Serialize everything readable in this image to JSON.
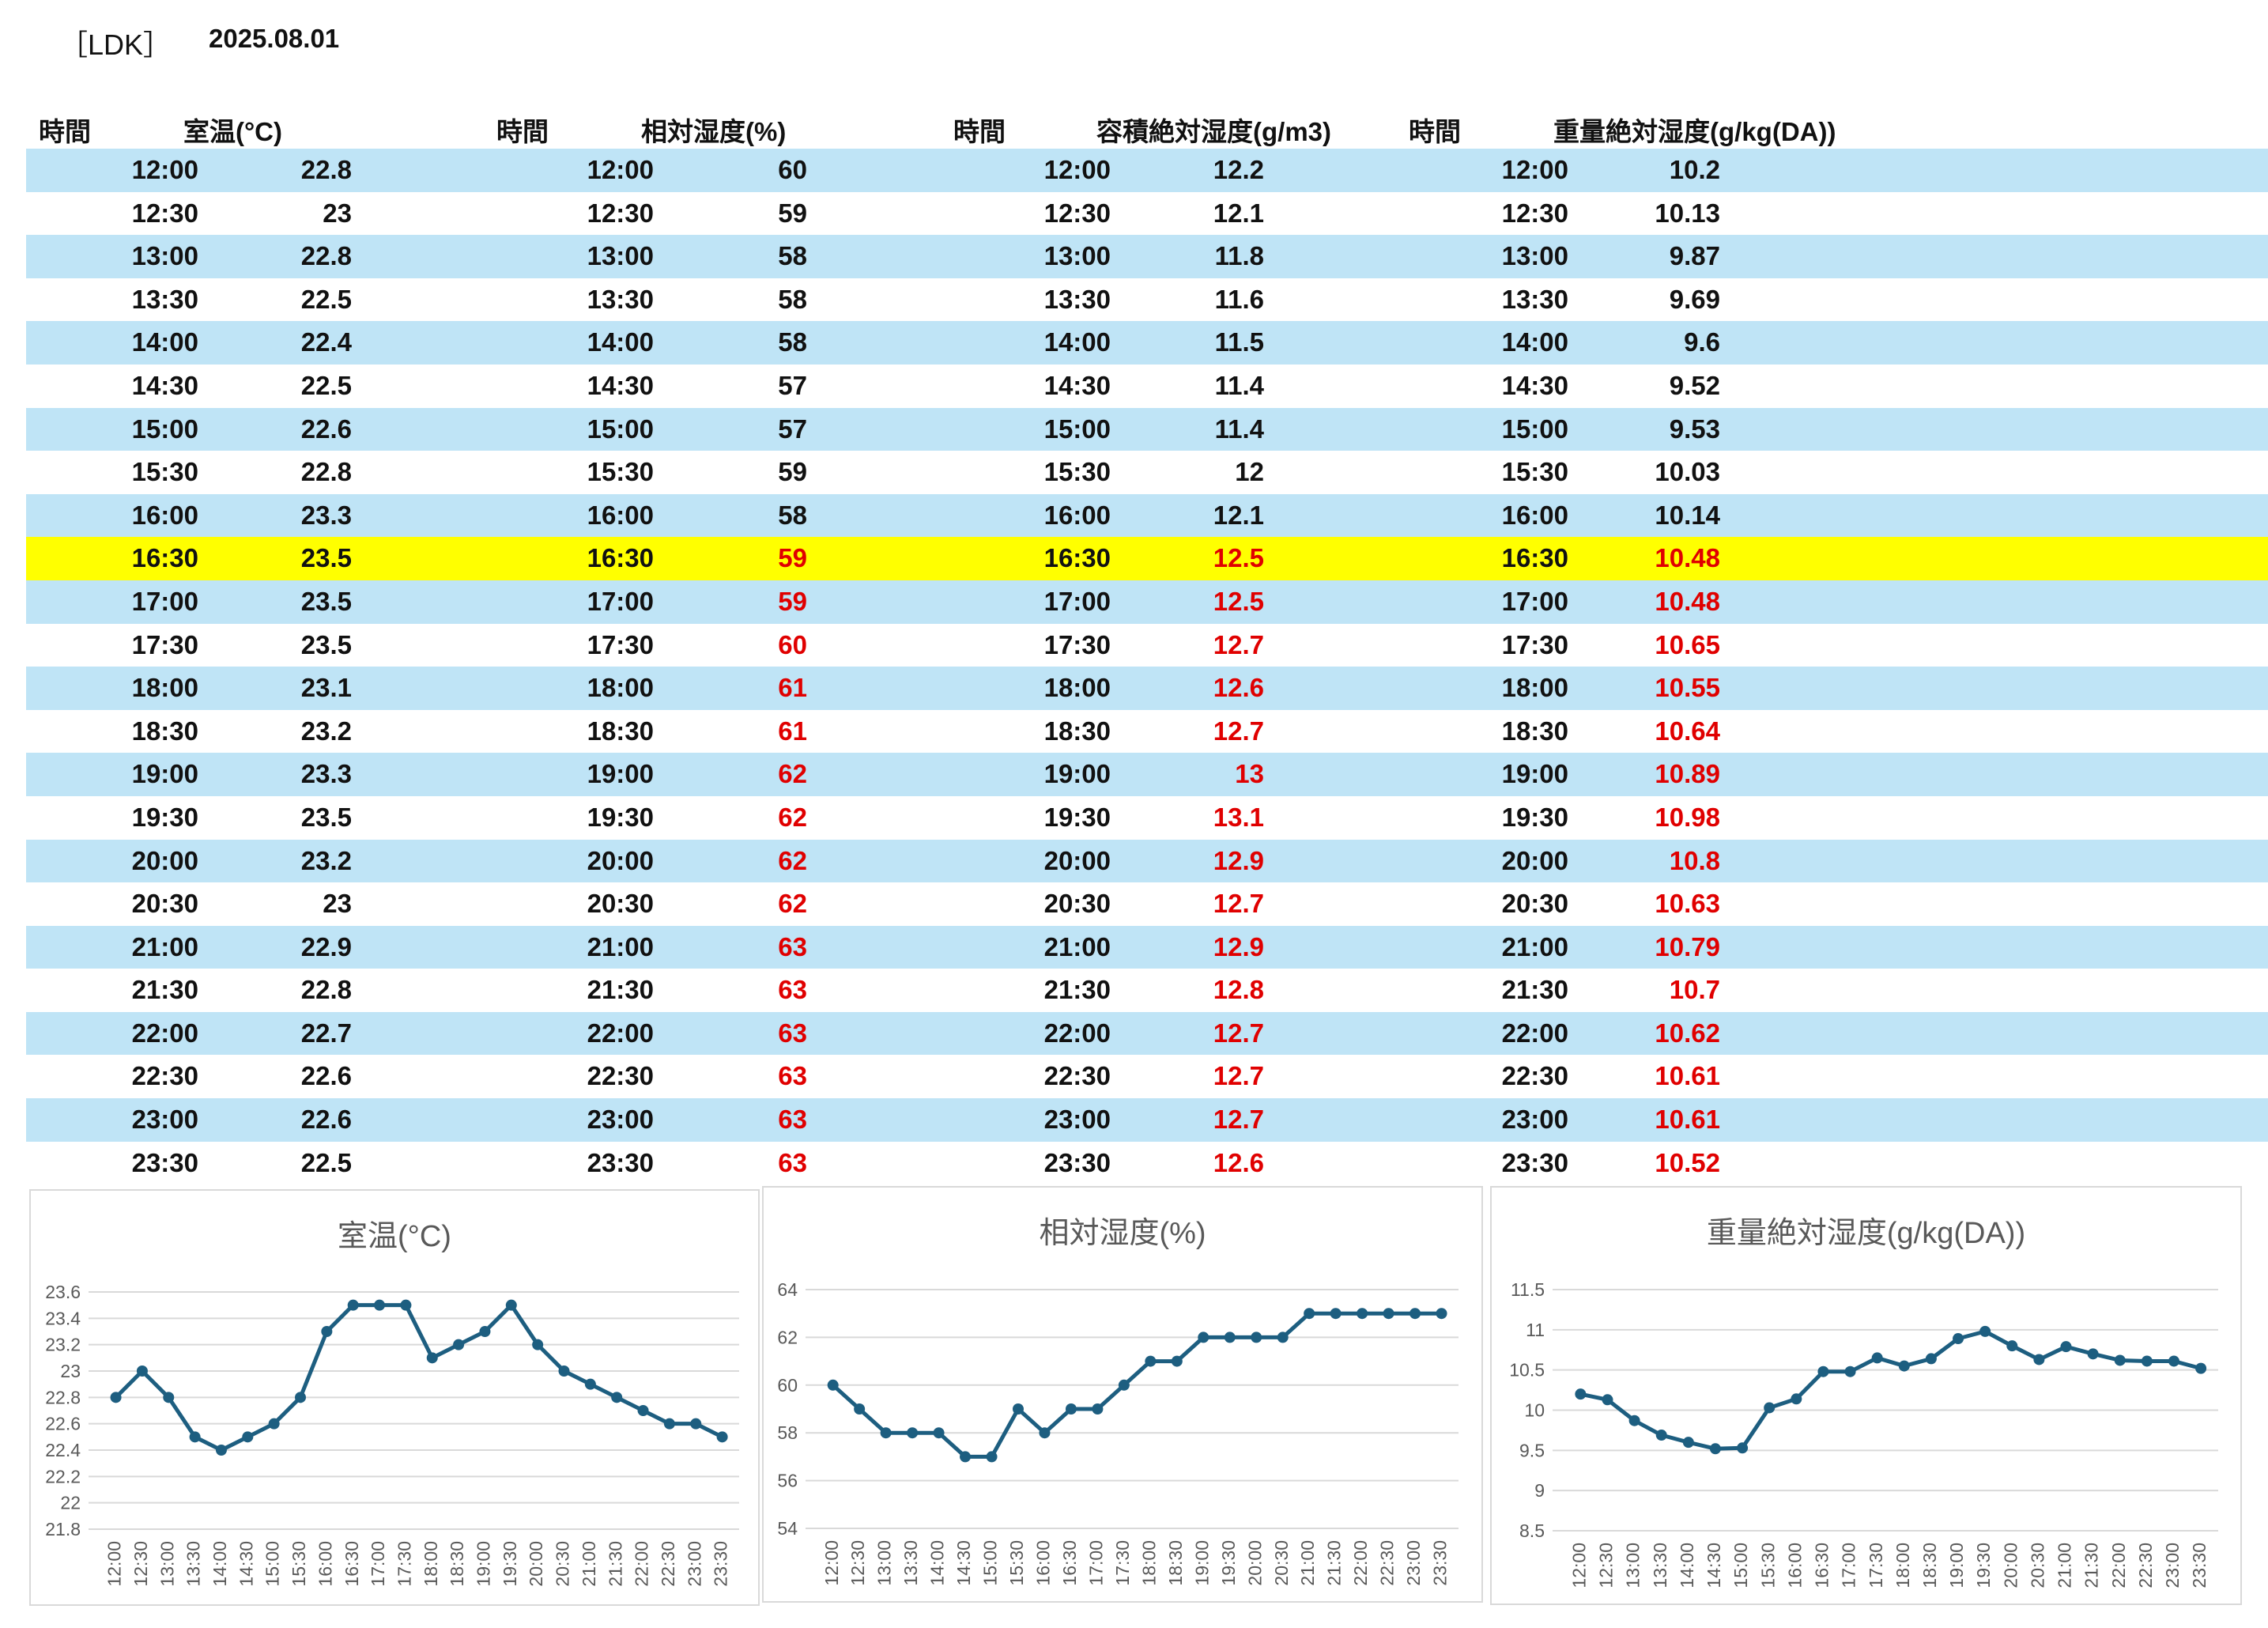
{
  "header": {
    "title": "［LDK］",
    "date": "2025.08.01"
  },
  "columns": {
    "time": "時間",
    "temp": "室温(°C)",
    "rh": "相対湿度(%)",
    "vah": "容積絶対湿度(g/m3)",
    "mah": "重量絶対湿度(g/kg(DA))"
  },
  "colors": {
    "row_alt": "#bfe4f6",
    "highlight": "#ffff00",
    "red_text": "#e00000",
    "line": "#1d5e80"
  },
  "highlight_row": "16:30",
  "red_from_row": "16:30",
  "times": [
    "12:00",
    "12:30",
    "13:00",
    "13:30",
    "14:00",
    "14:30",
    "15:00",
    "15:30",
    "16:00",
    "16:30",
    "17:00",
    "17:30",
    "18:00",
    "18:30",
    "19:00",
    "19:30",
    "20:00",
    "20:30",
    "21:00",
    "21:30",
    "22:00",
    "22:30",
    "23:00",
    "23:30"
  ],
  "temp": [
    "22.8",
    "23",
    "22.8",
    "22.5",
    "22.4",
    "22.5",
    "22.6",
    "22.8",
    "23.3",
    "23.5",
    "23.5",
    "23.5",
    "23.1",
    "23.2",
    "23.3",
    "23.5",
    "23.2",
    "23",
    "22.9",
    "22.8",
    "22.7",
    "22.6",
    "22.6",
    "22.5"
  ],
  "rh": [
    "60",
    "59",
    "58",
    "58",
    "58",
    "57",
    "57",
    "59",
    "58",
    "59",
    "59",
    "60",
    "61",
    "61",
    "62",
    "62",
    "62",
    "62",
    "63",
    "63",
    "63",
    "63",
    "63",
    "63"
  ],
  "vah": [
    "12.2",
    "12.1",
    "11.8",
    "11.6",
    "11.5",
    "11.4",
    "11.4",
    "12",
    "12.1",
    "12.5",
    "12.5",
    "12.7",
    "12.6",
    "12.7",
    "13",
    "13.1",
    "12.9",
    "12.7",
    "12.9",
    "12.8",
    "12.7",
    "12.7",
    "12.7",
    "12.6"
  ],
  "mah": [
    "10.2",
    "10.13",
    "9.87",
    "9.69",
    "9.6",
    "9.52",
    "9.53",
    "10.03",
    "10.14",
    "10.48",
    "10.48",
    "10.65",
    "10.55",
    "10.64",
    "10.89",
    "10.98",
    "10.8",
    "10.63",
    "10.79",
    "10.7",
    "10.62",
    "10.61",
    "10.61",
    "10.52"
  ],
  "chart_data": [
    {
      "type": "line",
      "title": "室温(°C)",
      "x": [
        "12:00",
        "12:30",
        "13:00",
        "13:30",
        "14:00",
        "14:30",
        "15:00",
        "15:30",
        "16:00",
        "16:30",
        "17:00",
        "17:30",
        "18:00",
        "18:30",
        "19:00",
        "19:30",
        "20:00",
        "20:30",
        "21:00",
        "21:30",
        "22:00",
        "22:30",
        "23:00",
        "23:30"
      ],
      "values": [
        22.8,
        23,
        22.8,
        22.5,
        22.4,
        22.5,
        22.6,
        22.8,
        23.3,
        23.5,
        23.5,
        23.5,
        23.1,
        23.2,
        23.3,
        23.5,
        23.2,
        23,
        22.9,
        22.8,
        22.7,
        22.6,
        22.6,
        22.5
      ],
      "ylim": [
        21.8,
        23.6
      ],
      "yticks": [
        "21.8",
        "22",
        "22.2",
        "22.4",
        "22.6",
        "22.8",
        "23",
        "23.2",
        "23.4",
        "23.6"
      ],
      "grid": true,
      "legend": "none"
    },
    {
      "type": "line",
      "title": "相対湿度(%)",
      "x": [
        "12:00",
        "12:30",
        "13:00",
        "13:30",
        "14:00",
        "14:30",
        "15:00",
        "15:30",
        "16:00",
        "16:30",
        "17:00",
        "17:30",
        "18:00",
        "18:30",
        "19:00",
        "19:30",
        "20:00",
        "20:30",
        "21:00",
        "21:30",
        "22:00",
        "22:30",
        "23:00",
        "23:30"
      ],
      "values": [
        60,
        59,
        58,
        58,
        58,
        57,
        57,
        59,
        58,
        59,
        59,
        60,
        61,
        61,
        62,
        62,
        62,
        62,
        63,
        63,
        63,
        63,
        63,
        63
      ],
      "ylim": [
        54,
        64
      ],
      "yticks": [
        "54",
        "56",
        "58",
        "60",
        "62",
        "64"
      ],
      "grid": true,
      "legend": "none"
    },
    {
      "type": "line",
      "title": "重量絶対湿度(g/kg(DA))",
      "x": [
        "12:00",
        "12:30",
        "13:00",
        "13:30",
        "14:00",
        "14:30",
        "15:00",
        "15:30",
        "16:00",
        "16:30",
        "17:00",
        "17:30",
        "18:00",
        "18:30",
        "19:00",
        "19:30",
        "20:00",
        "20:30",
        "21:00",
        "21:30",
        "22:00",
        "22:30",
        "23:00",
        "23:30"
      ],
      "values": [
        10.2,
        10.13,
        9.87,
        9.69,
        9.6,
        9.52,
        9.53,
        10.03,
        10.14,
        10.48,
        10.48,
        10.65,
        10.55,
        10.64,
        10.89,
        10.98,
        10.8,
        10.63,
        10.79,
        10.7,
        10.62,
        10.61,
        10.61,
        10.52
      ],
      "ylim": [
        8.5,
        11.5
      ],
      "yticks": [
        "8.5",
        "9",
        "9.5",
        "10",
        "10.5",
        "11",
        "11.5"
      ],
      "grid": true,
      "legend": "none"
    }
  ]
}
